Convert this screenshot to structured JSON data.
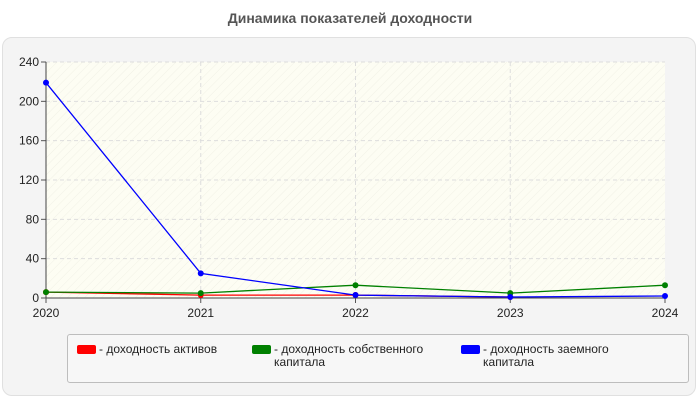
{
  "chart_data": {
    "type": "line",
    "title": "Динамика показателей доходности",
    "xlabel": "",
    "ylabel": "",
    "x": [
      "2020",
      "2021",
      "2022",
      "2023",
      "2024"
    ],
    "ylim": [
      0,
      240
    ],
    "yticks": [
      "0",
      "40",
      "80",
      "120",
      "160",
      "200",
      "240"
    ],
    "grid": true,
    "legend_position": "bottom",
    "series": [
      {
        "name": "- доходность активов",
        "color": "#ff0000",
        "values": [
          6,
          3,
          3,
          1,
          null
        ]
      },
      {
        "name": "- доходность собственного капитала",
        "color": "#008000",
        "values": [
          6,
          5,
          13,
          5,
          13
        ]
      },
      {
        "name": "- доходность заемного капитала",
        "color": "#0000ff",
        "values": [
          219,
          25,
          3,
          1,
          2
        ]
      }
    ]
  }
}
